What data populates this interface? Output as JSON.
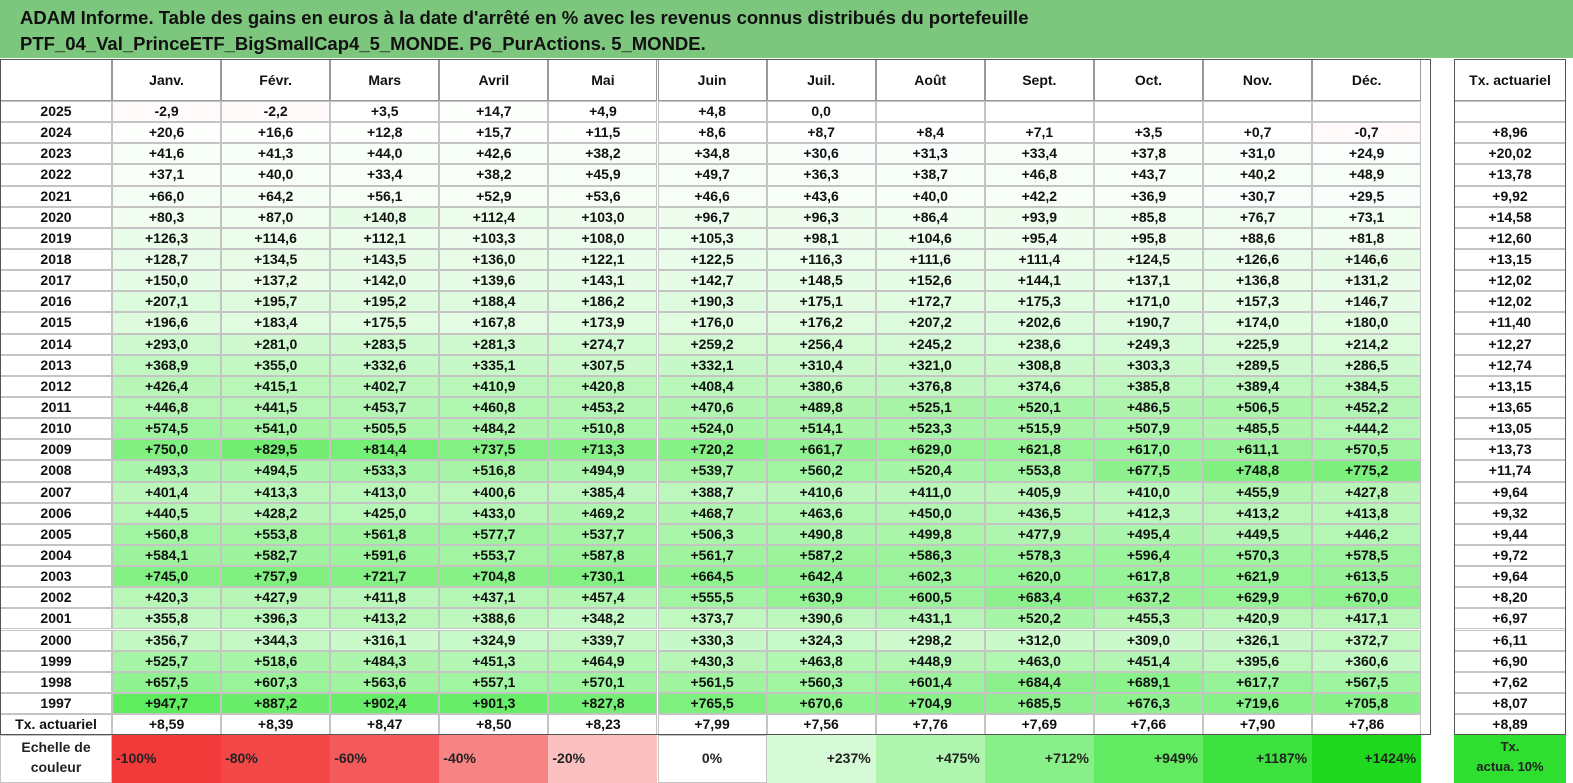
{
  "title": {
    "line1": "ADAM Informe. Table des gains en euros à la date d'arrêté en % avec les revenus connus distribués du portefeuille",
    "line2": "PTF_04_Val_PrinceETF_BigSmallCap4_5_MONDE. P6_PurActions. 5_MONDE."
  },
  "months": [
    "Janv.",
    "Févr.",
    "Mars",
    "Avril",
    "Mai",
    "Juin",
    "Juil.",
    "Août",
    "Sept.",
    "Oct.",
    "Nov.",
    "Déc."
  ],
  "tx_header": "Tx. actuariel",
  "rows": [
    {
      "year": "2025",
      "values": [
        "-2,9",
        "-2,2",
        "+3,5",
        "+14,7",
        "+4,9",
        "+4,8",
        "0,0",
        "",
        "",
        "",
        "",
        ""
      ],
      "tx": ""
    },
    {
      "year": "2024",
      "values": [
        "+20,6",
        "+16,6",
        "+12,8",
        "+15,7",
        "+11,5",
        "+8,6",
        "+8,7",
        "+8,4",
        "+7,1",
        "+3,5",
        "+0,7",
        "-0,7"
      ],
      "tx": "+8,96"
    },
    {
      "year": "2023",
      "values": [
        "+41,6",
        "+41,3",
        "+44,0",
        "+42,6",
        "+38,2",
        "+34,8",
        "+30,6",
        "+31,3",
        "+33,4",
        "+37,8",
        "+31,0",
        "+24,9"
      ],
      "tx": "+20,02"
    },
    {
      "year": "2022",
      "values": [
        "+37,1",
        "+40,0",
        "+33,4",
        "+38,2",
        "+45,9",
        "+49,7",
        "+36,3",
        "+38,7",
        "+46,8",
        "+43,7",
        "+40,2",
        "+48,9"
      ],
      "tx": "+13,78"
    },
    {
      "year": "2021",
      "values": [
        "+66,0",
        "+64,2",
        "+56,1",
        "+52,9",
        "+53,6",
        "+46,6",
        "+43,6",
        "+40,0",
        "+42,2",
        "+36,9",
        "+30,7",
        "+29,5"
      ],
      "tx": "+9,92"
    },
    {
      "year": "2020",
      "values": [
        "+80,3",
        "+87,0",
        "+140,8",
        "+112,4",
        "+103,0",
        "+96,7",
        "+96,3",
        "+86,4",
        "+93,9",
        "+85,8",
        "+76,7",
        "+73,1"
      ],
      "tx": "+14,58"
    },
    {
      "year": "2019",
      "values": [
        "+126,3",
        "+114,6",
        "+112,1",
        "+103,3",
        "+108,0",
        "+105,3",
        "+98,1",
        "+104,6",
        "+95,4",
        "+95,8",
        "+88,6",
        "+81,8"
      ],
      "tx": "+12,60"
    },
    {
      "year": "2018",
      "values": [
        "+128,7",
        "+134,5",
        "+143,5",
        "+136,0",
        "+122,1",
        "+122,5",
        "+116,3",
        "+111,6",
        "+111,4",
        "+124,5",
        "+126,6",
        "+146,6"
      ],
      "tx": "+13,15"
    },
    {
      "year": "2017",
      "values": [
        "+150,0",
        "+137,2",
        "+142,0",
        "+139,6",
        "+143,1",
        "+142,7",
        "+148,5",
        "+152,6",
        "+144,1",
        "+137,1",
        "+136,8",
        "+131,2"
      ],
      "tx": "+12,02"
    },
    {
      "year": "2016",
      "values": [
        "+207,1",
        "+195,7",
        "+195,2",
        "+188,4",
        "+186,2",
        "+190,3",
        "+175,1",
        "+172,7",
        "+175,3",
        "+171,0",
        "+157,3",
        "+146,7"
      ],
      "tx": "+12,02"
    },
    {
      "year": "2015",
      "values": [
        "+196,6",
        "+183,4",
        "+175,5",
        "+167,8",
        "+173,9",
        "+176,0",
        "+176,2",
        "+207,2",
        "+202,6",
        "+190,7",
        "+174,0",
        "+180,0"
      ],
      "tx": "+11,40"
    },
    {
      "year": "2014",
      "values": [
        "+293,0",
        "+281,0",
        "+283,5",
        "+281,3",
        "+274,7",
        "+259,2",
        "+256,4",
        "+245,2",
        "+238,6",
        "+249,3",
        "+225,9",
        "+214,2"
      ],
      "tx": "+12,27"
    },
    {
      "year": "2013",
      "values": [
        "+368,9",
        "+355,0",
        "+332,6",
        "+335,1",
        "+307,5",
        "+332,1",
        "+310,4",
        "+321,0",
        "+308,8",
        "+303,3",
        "+289,5",
        "+286,5"
      ],
      "tx": "+12,74"
    },
    {
      "year": "2012",
      "values": [
        "+426,4",
        "+415,1",
        "+402,7",
        "+410,9",
        "+420,8",
        "+408,4",
        "+380,6",
        "+376,8",
        "+374,6",
        "+385,8",
        "+389,4",
        "+384,5"
      ],
      "tx": "+13,15"
    },
    {
      "year": "2011",
      "values": [
        "+446,8",
        "+441,5",
        "+453,7",
        "+460,8",
        "+453,2",
        "+470,6",
        "+489,8",
        "+525,1",
        "+520,1",
        "+486,5",
        "+506,5",
        "+452,2"
      ],
      "tx": "+13,65"
    },
    {
      "year": "2010",
      "values": [
        "+574,5",
        "+541,0",
        "+505,5",
        "+484,2",
        "+510,8",
        "+524,0",
        "+514,1",
        "+523,3",
        "+515,9",
        "+507,9",
        "+485,5",
        "+444,2"
      ],
      "tx": "+13,05"
    },
    {
      "year": "2009",
      "values": [
        "+750,0",
        "+829,5",
        "+814,4",
        "+737,5",
        "+713,3",
        "+720,2",
        "+661,7",
        "+629,0",
        "+621,8",
        "+617,0",
        "+611,1",
        "+570,5"
      ],
      "tx": "+13,73"
    },
    {
      "year": "2008",
      "values": [
        "+493,3",
        "+494,5",
        "+533,3",
        "+516,8",
        "+494,9",
        "+539,7",
        "+560,2",
        "+520,4",
        "+553,8",
        "+677,5",
        "+748,8",
        "+775,2"
      ],
      "tx": "+11,74"
    },
    {
      "year": "2007",
      "values": [
        "+401,4",
        "+413,3",
        "+413,0",
        "+400,6",
        "+385,4",
        "+388,7",
        "+410,6",
        "+411,0",
        "+405,9",
        "+410,0",
        "+455,9",
        "+427,8"
      ],
      "tx": "+9,64"
    },
    {
      "year": "2006",
      "values": [
        "+440,5",
        "+428,2",
        "+425,0",
        "+433,0",
        "+469,2",
        "+468,7",
        "+463,6",
        "+450,0",
        "+436,5",
        "+412,3",
        "+413,2",
        "+413,8"
      ],
      "tx": "+9,32"
    },
    {
      "year": "2005",
      "values": [
        "+560,8",
        "+553,8",
        "+561,8",
        "+577,7",
        "+537,7",
        "+506,3",
        "+490,8",
        "+499,8",
        "+477,9",
        "+495,4",
        "+449,5",
        "+446,2"
      ],
      "tx": "+9,44"
    },
    {
      "year": "2004",
      "values": [
        "+584,1",
        "+582,7",
        "+591,6",
        "+553,7",
        "+587,8",
        "+561,7",
        "+587,2",
        "+586,3",
        "+578,3",
        "+596,4",
        "+570,3",
        "+578,5"
      ],
      "tx": "+9,72"
    },
    {
      "year": "2003",
      "values": [
        "+745,0",
        "+757,9",
        "+721,7",
        "+704,8",
        "+730,1",
        "+664,5",
        "+642,4",
        "+602,3",
        "+620,0",
        "+617,8",
        "+621,9",
        "+613,5"
      ],
      "tx": "+9,64"
    },
    {
      "year": "2002",
      "values": [
        "+420,3",
        "+427,9",
        "+411,8",
        "+437,1",
        "+457,4",
        "+555,5",
        "+630,9",
        "+600,5",
        "+683,4",
        "+637,2",
        "+629,9",
        "+670,0"
      ],
      "tx": "+8,20"
    },
    {
      "year": "2001",
      "values": [
        "+355,8",
        "+396,3",
        "+413,2",
        "+388,6",
        "+348,2",
        "+373,7",
        "+390,6",
        "+431,1",
        "+520,2",
        "+455,3",
        "+420,9",
        "+417,1"
      ],
      "tx": "+6,97"
    },
    {
      "year": "2000",
      "values": [
        "+356,7",
        "+344,3",
        "+316,1",
        "+324,9",
        "+339,7",
        "+330,3",
        "+324,3",
        "+298,2",
        "+312,0",
        "+309,0",
        "+326,1",
        "+372,7"
      ],
      "tx": "+6,11"
    },
    {
      "year": "1999",
      "values": [
        "+525,7",
        "+518,6",
        "+484,3",
        "+451,3",
        "+464,9",
        "+430,3",
        "+463,8",
        "+448,9",
        "+463,0",
        "+451,4",
        "+395,6",
        "+360,6"
      ],
      "tx": "+6,90"
    },
    {
      "year": "1998",
      "values": [
        "+657,5",
        "+607,3",
        "+563,6",
        "+557,1",
        "+570,1",
        "+561,5",
        "+560,3",
        "+601,4",
        "+684,4",
        "+689,1",
        "+617,7",
        "+567,5"
      ],
      "tx": "+7,62"
    },
    {
      "year": "1997",
      "values": [
        "+947,7",
        "+887,2",
        "+902,4",
        "+901,3",
        "+827,8",
        "+765,5",
        "+670,6",
        "+704,9",
        "+685,5",
        "+676,3",
        "+719,6",
        "+705,8"
      ],
      "tx": "+8,07"
    }
  ],
  "footer": {
    "label": "Tx. actuariel",
    "values": [
      "+8,59",
      "+8,39",
      "+8,47",
      "+8,50",
      "+8,23",
      "+7,99",
      "+7,56",
      "+7,76",
      "+7,69",
      "+7,66",
      "+7,90",
      "+7,86"
    ],
    "tx": "+8,89"
  },
  "scale": {
    "label_line1": "Echelle de",
    "label_line2": "couleur",
    "items": [
      {
        "label": "-100%",
        "color": "#f23a3a",
        "align": "left"
      },
      {
        "label": "-80%",
        "color": "#f44848",
        "align": "left"
      },
      {
        "label": "-60%",
        "color": "#f55a5a",
        "align": "left"
      },
      {
        "label": "-40%",
        "color": "#f78484",
        "align": "left"
      },
      {
        "label": "-20%",
        "color": "#fac0c0",
        "align": "left"
      },
      {
        "label": "0%",
        "color": "#ffffff",
        "align": "center"
      },
      {
        "label": "+237%",
        "color": "#d6fad6",
        "align": "right"
      },
      {
        "label": "+475%",
        "color": "#b0f6b0",
        "align": "right"
      },
      {
        "label": "+712%",
        "color": "#89f089",
        "align": "right"
      },
      {
        "label": "+949%",
        "color": "#62ea62",
        "align": "right"
      },
      {
        "label": "+1187%",
        "color": "#3ee23e",
        "align": "right"
      },
      {
        "label": "+1424%",
        "color": "#1fd91f",
        "align": "right"
      }
    ],
    "tx_line1": "Tx.",
    "tx_line2": "actua. 10%",
    "tx_color": "#2fdf2f"
  }
}
